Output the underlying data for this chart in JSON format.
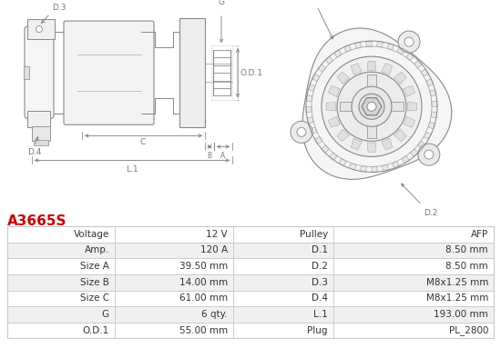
{
  "title": "A3665S",
  "title_color": "#cc0000",
  "bg_color": "#ffffff",
  "table_row_alt_bg": "#f0f0f0",
  "table_row_bg": "#ffffff",
  "border_color": "#c8c8c8",
  "line_color": "#888888",
  "text_color": "#333333",
  "label_color": "#555555",
  "dim_color": "#777777",
  "rows": [
    [
      "Voltage",
      "12 V",
      "Pulley",
      "AFP"
    ],
    [
      "Amp.",
      "120 A",
      "D.1",
      "8.50 mm"
    ],
    [
      "Size A",
      "39.50 mm",
      "D.2",
      "8.50 mm"
    ],
    [
      "Size B",
      "14.00 mm",
      "D.3",
      "M8x1.25 mm"
    ],
    [
      "Size C",
      "61.00 mm",
      "D.4",
      "M8x1.25 mm"
    ],
    [
      "G",
      "6 qty.",
      "L.1",
      "193.00 mm"
    ],
    [
      "O.D.1",
      "55.00 mm",
      "Plug",
      "PL_2800"
    ]
  ],
  "font_size_title": 11,
  "font_size_table": 7.5,
  "font_size_label": 6.5
}
